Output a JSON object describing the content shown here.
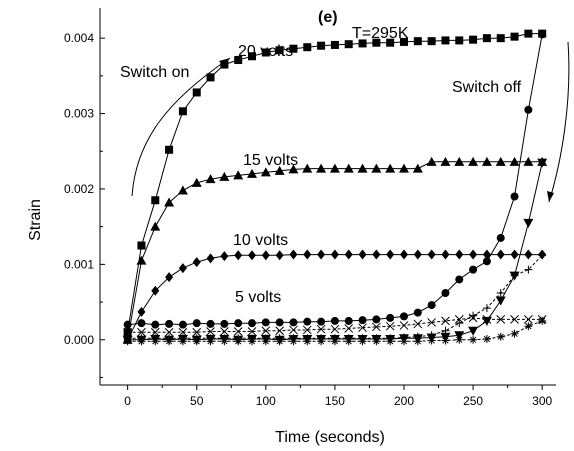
{
  "chart_data": {
    "type": "line",
    "title": "",
    "panel_label": "(e)",
    "xlabel": "Time (seconds)",
    "ylabel": "Strain",
    "xlim": [
      -20,
      310
    ],
    "ylim": [
      -0.0006,
      0.0044
    ],
    "xticks": [
      0,
      50,
      100,
      150,
      200,
      250,
      300
    ],
    "xtick_labels": [
      "0",
      "50",
      "100",
      "150",
      "200",
      "250",
      "300"
    ],
    "yticks": [
      0.0,
      0.001,
      0.002,
      0.003,
      0.004
    ],
    "ytick_labels": [
      "0.000",
      "0.001",
      "0.002",
      "0.003",
      "0.004"
    ],
    "grid": false,
    "annotations": {
      "temperature": "T=295K",
      "switch_on": "Switch on",
      "switch_off": "Switch off",
      "label_20": "20 volts",
      "label_15": "15 volts",
      "label_10": "10 volts",
      "label_5": "5 volts"
    },
    "series": [
      {
        "marker": "square",
        "x": [
          0,
          10,
          20,
          30,
          40,
          50,
          60,
          70,
          80,
          90,
          100,
          110,
          120,
          130,
          140,
          150,
          160,
          170,
          180,
          190,
          200,
          210,
          220,
          230,
          240,
          250,
          260,
          270,
          280,
          290,
          300
        ],
        "y": [
          0.0001,
          0.00125,
          0.00185,
          0.00252,
          0.00303,
          0.00328,
          0.00348,
          0.00365,
          0.00371,
          0.00376,
          0.00381,
          0.00384,
          0.00386,
          0.00388,
          0.0039,
          0.00391,
          0.00392,
          0.00393,
          0.00394,
          0.00394,
          0.00395,
          0.00396,
          0.00396,
          0.00397,
          0.00397,
          0.00398,
          0.004,
          0.004,
          0.00402,
          0.00406,
          0.00406
        ]
      },
      {
        "marker": "triangle-up",
        "x": [
          0,
          10,
          20,
          30,
          40,
          50,
          60,
          70,
          80,
          90,
          100,
          110,
          120,
          130,
          140,
          150,
          160,
          170,
          180,
          190,
          200,
          210,
          220,
          230,
          240,
          250,
          260,
          270,
          280,
          290,
          300
        ],
        "y": [
          0.0,
          0.00105,
          0.0015,
          0.00182,
          0.00198,
          0.00208,
          0.00213,
          0.00216,
          0.00218,
          0.0022,
          0.00222,
          0.00224,
          0.00226,
          0.00227,
          0.00227,
          0.00227,
          0.00227,
          0.00227,
          0.00227,
          0.00227,
          0.00227,
          0.00227,
          0.00236,
          0.00236,
          0.00236,
          0.00236,
          0.00236,
          0.00236,
          0.00236,
          0.00236,
          0.00236
        ]
      },
      {
        "marker": "diamond",
        "x": [
          0,
          10,
          20,
          30,
          40,
          50,
          60,
          70,
          80,
          90,
          100,
          110,
          120,
          130,
          140,
          150,
          160,
          170,
          180,
          190,
          200,
          210,
          220,
          230,
          240,
          250,
          260,
          270,
          280,
          290,
          300
        ],
        "y": [
          0.0,
          0.00037,
          0.00065,
          0.00083,
          0.00095,
          0.00103,
          0.00108,
          0.00111,
          0.00112,
          0.00112,
          0.00112,
          0.00112,
          0.00113,
          0.00113,
          0.00113,
          0.00113,
          0.00113,
          0.00113,
          0.00113,
          0.00113,
          0.00113,
          0.00113,
          0.00113,
          0.00113,
          0.00113,
          0.00113,
          0.00113,
          0.00113,
          0.00113,
          0.00113,
          0.00113
        ]
      },
      {
        "marker": "circle",
        "x": [
          0,
          10,
          20,
          30,
          40,
          50,
          60,
          70,
          80,
          90,
          100,
          110,
          120,
          130,
          140,
          150,
          160,
          170,
          180,
          190,
          200,
          210,
          220,
          230,
          240,
          250,
          260,
          270,
          280,
          290,
          300
        ],
        "y": [
          0.0002,
          0.00022,
          0.0002,
          0.00021,
          0.0002,
          0.00022,
          0.00021,
          0.00021,
          0.00022,
          0.00022,
          0.00023,
          0.00023,
          0.00023,
          0.00024,
          0.00024,
          0.00025,
          0.00025,
          0.00026,
          0.00027,
          0.00029,
          0.00031,
          0.00036,
          0.00046,
          0.00062,
          0.0008,
          0.00093,
          0.00104,
          0.00135,
          0.0019,
          0.00305,
          0.00405
        ]
      },
      {
        "marker": "triangle-down",
        "x": [
          0,
          10,
          20,
          30,
          40,
          50,
          60,
          70,
          80,
          90,
          100,
          110,
          120,
          130,
          140,
          150,
          160,
          170,
          180,
          190,
          200,
          210,
          220,
          230,
          240,
          250,
          260,
          270,
          280,
          290,
          300
        ],
        "y": [
          0.0,
          0.0,
          1e-05,
          0.0,
          1e-05,
          0.0,
          1e-05,
          1e-05,
          0.0,
          1e-05,
          1e-05,
          0.0,
          1e-05,
          1e-05,
          1e-05,
          1e-05,
          1e-05,
          1e-05,
          1e-05,
          1e-05,
          2e-05,
          2e-05,
          3e-05,
          4e-05,
          6e-05,
          0.00012,
          0.00025,
          0.00052,
          0.00085,
          0.00155,
          0.00235
        ]
      },
      {
        "marker": "plus",
        "x": [
          0,
          10,
          20,
          30,
          40,
          50,
          60,
          70,
          80,
          90,
          100,
          110,
          120,
          130,
          140,
          150,
          160,
          170,
          180,
          190,
          200,
          210,
          220,
          230,
          240,
          250,
          260,
          270,
          280,
          290,
          300
        ],
        "y": [
          2e-05,
          2e-05,
          2e-05,
          2e-05,
          2e-05,
          2e-05,
          2e-05,
          2e-05,
          2e-05,
          2e-05,
          2e-05,
          2e-05,
          2e-05,
          2e-05,
          2e-05,
          2e-05,
          2e-05,
          2e-05,
          2e-05,
          2e-05,
          3e-05,
          4e-05,
          6e-05,
          0.00012,
          0.00022,
          0.00032,
          0.00042,
          0.00062,
          0.00085,
          0.00093,
          0.00112
        ]
      },
      {
        "marker": "x",
        "x": [
          0,
          10,
          20,
          30,
          40,
          50,
          60,
          70,
          80,
          90,
          100,
          110,
          120,
          130,
          140,
          150,
          160,
          170,
          180,
          190,
          200,
          210,
          220,
          230,
          240,
          250,
          260,
          270,
          280,
          290,
          300
        ],
        "y": [
          0.0001,
          0.0001,
          0.0001,
          0.0001,
          0.0001,
          0.0001,
          0.00011,
          0.00011,
          0.00011,
          0.00011,
          0.00012,
          0.00012,
          0.00013,
          0.00013,
          0.00014,
          0.00014,
          0.00015,
          0.00016,
          0.00017,
          0.00018,
          0.00019,
          0.00021,
          0.00023,
          0.00025,
          0.00027,
          0.00029,
          0.00027,
          0.00027,
          0.00027,
          0.00027,
          0.00027
        ]
      },
      {
        "marker": "star",
        "x": [
          0,
          10,
          20,
          30,
          40,
          50,
          60,
          70,
          80,
          90,
          100,
          110,
          120,
          130,
          140,
          150,
          160,
          170,
          180,
          190,
          200,
          210,
          220,
          230,
          240,
          250,
          260,
          270,
          280,
          290,
          300
        ],
        "y": [
          -2e-05,
          -2e-05,
          -2e-05,
          -2e-05,
          -2e-05,
          -2e-05,
          -2e-05,
          -2e-05,
          -2e-05,
          -2e-05,
          -2e-05,
          -2e-05,
          -2e-05,
          -2e-05,
          -2e-05,
          -2e-05,
          -2e-05,
          -2e-05,
          -2e-05,
          -2e-05,
          -2e-05,
          -2e-05,
          -1e-05,
          -1e-05,
          0.0,
          0.0,
          1e-05,
          4e-05,
          8e-05,
          0.00018,
          0.00025
        ]
      }
    ]
  }
}
